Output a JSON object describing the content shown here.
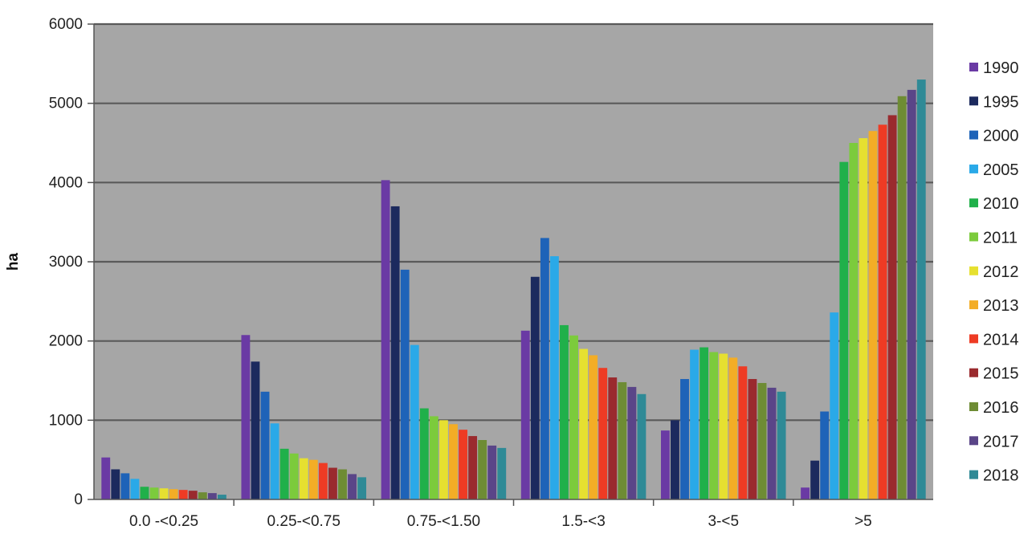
{
  "chart_data": {
    "type": "bar",
    "title": "",
    "xlabel": "",
    "ylabel": "ha",
    "ylim": [
      0,
      6000
    ],
    "yticks": [
      0,
      1000,
      2000,
      3000,
      4000,
      5000,
      6000
    ],
    "grid": true,
    "legend_position": "right",
    "categories": [
      "0.0 -<0.25",
      "0.25-<0.75",
      "0.75-<1.50",
      "1.5-<3",
      "3-<5",
      ">5"
    ],
    "series": [
      {
        "name": "1990",
        "color": "#6a3aa4",
        "values": [
          530,
          2075,
          4030,
          2130,
          870,
          150
        ]
      },
      {
        "name": "1995",
        "color": "#1c2a5e",
        "values": [
          380,
          1740,
          3700,
          2810,
          1000,
          490
        ]
      },
      {
        "name": "2000",
        "color": "#1e63b8",
        "values": [
          330,
          1360,
          2900,
          3300,
          1520,
          1110
        ]
      },
      {
        "name": "2005",
        "color": "#2aa9e8",
        "values": [
          260,
          960,
          1950,
          3070,
          1890,
          2360
        ]
      },
      {
        "name": "2010",
        "color": "#20b04a",
        "values": [
          160,
          640,
          1150,
          2200,
          1920,
          4260
        ]
      },
      {
        "name": "2011",
        "color": "#7ccb3c",
        "values": [
          150,
          580,
          1050,
          2070,
          1860,
          4500
        ]
      },
      {
        "name": "2012",
        "color": "#e6e030",
        "values": [
          140,
          520,
          1000,
          1900,
          1840,
          4560
        ]
      },
      {
        "name": "2013",
        "color": "#f3ad26",
        "values": [
          130,
          500,
          950,
          1820,
          1790,
          4650
        ]
      },
      {
        "name": "2014",
        "color": "#ee3b24",
        "values": [
          120,
          460,
          880,
          1660,
          1680,
          4730
        ]
      },
      {
        "name": "2015",
        "color": "#9a2a2e",
        "values": [
          110,
          400,
          800,
          1540,
          1520,
          4850
        ]
      },
      {
        "name": "2016",
        "color": "#6e8c34",
        "values": [
          90,
          380,
          750,
          1480,
          1470,
          5090
        ]
      },
      {
        "name": "2017",
        "color": "#5a4588",
        "values": [
          80,
          320,
          680,
          1420,
          1410,
          5170
        ]
      },
      {
        "name": "2018",
        "color": "#2f8a96",
        "values": [
          60,
          280,
          650,
          1330,
          1360,
          5300
        ]
      }
    ]
  }
}
